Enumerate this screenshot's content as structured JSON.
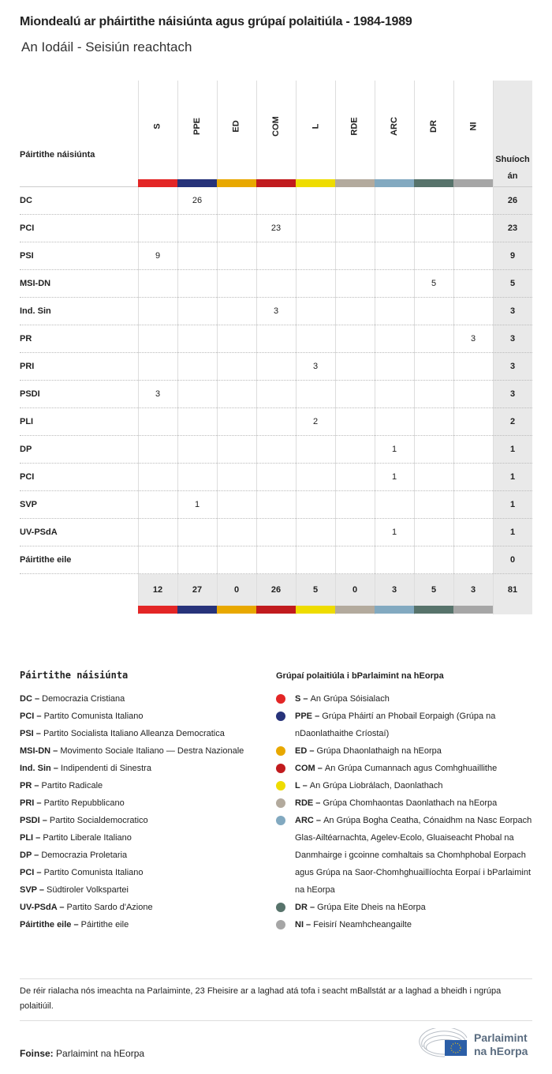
{
  "title": "Miondealú ar pháirtithe náisiúnta agus grúpaí polaitiúla - 1984-1989",
  "subtitle": "An Iodáil - Seisiún reachtach",
  "chart_data": {
    "type": "table",
    "row_header": "Páirtithe náisiúnta",
    "total_header": "Shuíochán",
    "total_header_display": [
      "Shuíoch",
      "án"
    ],
    "columns": [
      "S",
      "PPE",
      "ED",
      "COM",
      "L",
      "RDE",
      "ARC",
      "DR",
      "NI"
    ],
    "column_colors": [
      "#e32626",
      "#27337a",
      "#e8a800",
      "#c11b1e",
      "#eedc00",
      "#b3aa9d",
      "#82a9c0",
      "#57736b",
      "#a6a6a6"
    ],
    "rows": [
      {
        "name": "DC",
        "values": [
          null,
          26,
          null,
          null,
          null,
          null,
          null,
          null,
          null
        ],
        "total": 26
      },
      {
        "name": "PCI",
        "values": [
          null,
          null,
          null,
          23,
          null,
          null,
          null,
          null,
          null
        ],
        "total": 23
      },
      {
        "name": "PSI",
        "values": [
          9,
          null,
          null,
          null,
          null,
          null,
          null,
          null,
          null
        ],
        "total": 9
      },
      {
        "name": "MSI-DN",
        "values": [
          null,
          null,
          null,
          null,
          null,
          null,
          null,
          5,
          null
        ],
        "total": 5
      },
      {
        "name": "Ind. Sin",
        "values": [
          null,
          null,
          null,
          3,
          null,
          null,
          null,
          null,
          null
        ],
        "total": 3
      },
      {
        "name": "PR",
        "values": [
          null,
          null,
          null,
          null,
          null,
          null,
          null,
          null,
          3
        ],
        "total": 3
      },
      {
        "name": "PRI",
        "values": [
          null,
          null,
          null,
          null,
          3,
          null,
          null,
          null,
          null
        ],
        "total": 3
      },
      {
        "name": "PSDI",
        "values": [
          3,
          null,
          null,
          null,
          null,
          null,
          null,
          null,
          null
        ],
        "total": 3
      },
      {
        "name": "PLI",
        "values": [
          null,
          null,
          null,
          null,
          2,
          null,
          null,
          null,
          null
        ],
        "total": 2
      },
      {
        "name": "DP",
        "values": [
          null,
          null,
          null,
          null,
          null,
          null,
          1,
          null,
          null
        ],
        "total": 1
      },
      {
        "name": "PCI",
        "values": [
          null,
          null,
          null,
          null,
          null,
          null,
          1,
          null,
          null
        ],
        "total": 1
      },
      {
        "name": "SVP",
        "values": [
          null,
          1,
          null,
          null,
          null,
          null,
          null,
          null,
          null
        ],
        "total": 1
      },
      {
        "name": "UV-PSdA",
        "values": [
          null,
          null,
          null,
          null,
          null,
          null,
          1,
          null,
          null
        ],
        "total": 1
      },
      {
        "name": "Páirtithe eile",
        "values": [
          null,
          null,
          null,
          null,
          null,
          null,
          null,
          null,
          null
        ],
        "total": 0
      }
    ],
    "column_totals": [
      12,
      27,
      0,
      26,
      5,
      0,
      3,
      5,
      3
    ],
    "grand_total": 81
  },
  "legend_national": {
    "heading": "Páirtithe náisiúnta",
    "items": [
      {
        "abbr": "DC",
        "name": "Democrazia Cristiana"
      },
      {
        "abbr": "PCI",
        "name": "Partito Comunista Italiano"
      },
      {
        "abbr": "PSI",
        "name": "Partito Socialista Italiano Alleanza Democratica"
      },
      {
        "abbr": "MSI-DN",
        "name": "Movimento Sociale Italiano — Destra Nazionale"
      },
      {
        "abbr": "Ind. Sin",
        "name": "Indipendenti di Sinestra"
      },
      {
        "abbr": "PR",
        "name": " Partito Radicale"
      },
      {
        "abbr": "PRI",
        "name": "Partito Repubblicano"
      },
      {
        "abbr": "PSDI",
        "name": "Partito Socialdemocratico"
      },
      {
        "abbr": "PLI",
        "name": "Partito Liberale Italiano"
      },
      {
        "abbr": "DP",
        "name": "Democrazia Proletaria"
      },
      {
        "abbr": "PCI",
        "name": "Partito Comunista Italiano"
      },
      {
        "abbr": "SVP",
        "name": "Südtiroler Volkspartei"
      },
      {
        "abbr": "UV-PSdA",
        "name": "Partito Sardo d'Azione"
      },
      {
        "abbr": "Páirtithe eile",
        "name": "Páirtithe eile"
      }
    ]
  },
  "legend_groups": {
    "heading": "Grúpaí polaitiúla i bParlaimint na hEorpa",
    "items": [
      {
        "abbr": "S",
        "name": "An Grúpa Sóisialach",
        "color": "#e32626"
      },
      {
        "abbr": "PPE",
        "name": "Grúpa Pháirtí an Phobail Eorpaigh (Grúpa na nDaonlathaithe Críostaí)",
        "color": "#27337a"
      },
      {
        "abbr": "ED",
        "name": "Grúpa Dhaonlathaigh na hEorpa",
        "color": "#e8a800"
      },
      {
        "abbr": "COM",
        "name": "An Grúpa Cumannach agus Comhghuaillithe",
        "color": "#c11b1e"
      },
      {
        "abbr": "L",
        "name": "An Grúpa Liobrálach, Daonlathach",
        "color": "#eedc00"
      },
      {
        "abbr": "RDE",
        "name": "Grúpa Chomhaontas Daonlathach na hEorpa",
        "color": "#b3aa9d"
      },
      {
        "abbr": "ARC",
        "name": "An Grúpa Bogha Ceatha, Cónaidhm na Nasc Eorpach Glas-Ailtéarnachta, Agelev-Ecolo, Gluaiseacht Phobal na Danmhairge i gcoinne comhaltais sa Chomhphobal Eorpach agus Grúpa na Saor-Chomhghuaillíochta Eorpaí i bParlaimint na hEorpa",
        "color": "#82a9c0"
      },
      {
        "abbr": "DR",
        "name": "Grúpa Eite Dheis na hEorpa",
        "color": "#57736b"
      },
      {
        "abbr": "NI",
        "name": "Feisirí Neamhcheangailte",
        "color": "#a6a6a6"
      }
    ]
  },
  "note": "De réir rialacha nós imeachta na Parlaiminte, 23 Fheisire ar a laghad atá tofa i seacht mBallstát ar a laghad a bheidh i ngrúpa polaitiúil.",
  "source_label": "Foinse:",
  "source": "Parlaimint na hEorpa",
  "logo_text": [
    "Parlaimint",
    "na hEorpa"
  ]
}
